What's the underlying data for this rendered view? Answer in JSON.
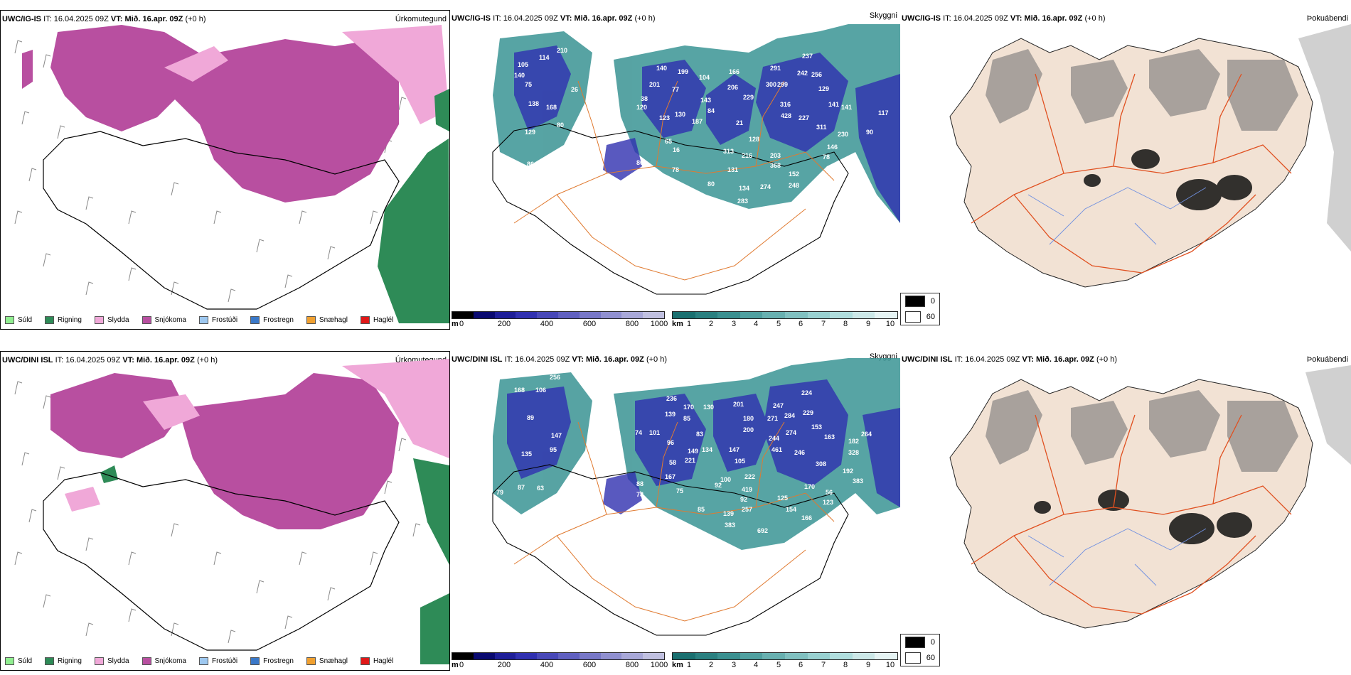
{
  "rows": [
    {
      "model": "UWC/IG-IS",
      "it_label": "IT:",
      "it_value": "16.04.2025 09Z",
      "vt_label": "VT:",
      "vt_value": "Mið. 16.apr. 09Z",
      "lead": "(+0 h)"
    },
    {
      "model": "UWC/DINI ISL",
      "it_label": "IT:",
      "it_value": "16.04.2025 09Z",
      "vt_label": "VT:",
      "vt_value": "Mið. 16.apr. 09Z",
      "lead": "(+0 h)"
    }
  ],
  "panel_labels": {
    "precip": "Úrkomutegund",
    "visibility": "Skyggni",
    "fog": "Þokuábendi"
  },
  "precip_legend": [
    {
      "label": "Súld",
      "color": "#90ee90"
    },
    {
      "label": "Rigning",
      "color": "#2e8b57"
    },
    {
      "label": "Slydda",
      "color": "#f0a8d8"
    },
    {
      "label": "Snjókoma",
      "color": "#b84fa0"
    },
    {
      "label": "Frostúði",
      "color": "#9ec8f0"
    },
    {
      "label": "Frostregn",
      "color": "#3a78c8"
    },
    {
      "label": "Snæhagl",
      "color": "#f0a030"
    },
    {
      "label": "Haglél",
      "color": "#e01818"
    }
  ],
  "cloudbase_bar": {
    "unit": "m",
    "ticks": [
      "0",
      "200",
      "400",
      "600",
      "800",
      "1000"
    ],
    "colors": [
      "#000000",
      "#0a0a70",
      "#1e1e98",
      "#3030b0",
      "#4848b8",
      "#6060c0",
      "#7878c8",
      "#9090d0",
      "#a8a8d8",
      "#c0c0e0"
    ]
  },
  "vis_bar": {
    "unit": "km",
    "ticks": [
      "1",
      "2",
      "3",
      "4",
      "5",
      "6",
      "7",
      "8",
      "9",
      "10"
    ],
    "colors": [
      "#1a7070",
      "#2a8080",
      "#3a9090",
      "#50a0a0",
      "#68b0b0",
      "#80c0c0",
      "#98d0d0",
      "#b0dede",
      "#cce8e8",
      "#e6f4f4"
    ]
  },
  "fog_legend": [
    {
      "label": "0",
      "color": "#000000"
    },
    {
      "label": "60",
      "color": "#ffffff"
    }
  ],
  "vis_numbers_top": [
    "105",
    "114",
    "210",
    "140",
    "75",
    "138",
    "168",
    "129",
    "80",
    "26",
    "71",
    "105",
    "86",
    "159",
    "80",
    "72",
    "115",
    "78",
    "16",
    "80",
    "140",
    "199",
    "201",
    "77",
    "38",
    "120",
    "143",
    "187",
    "130",
    "123",
    "65",
    "84",
    "104",
    "166",
    "206",
    "229",
    "21",
    "128",
    "313",
    "216",
    "131",
    "291",
    "300",
    "299",
    "237",
    "242",
    "256",
    "129",
    "316",
    "428",
    "227",
    "141",
    "141",
    "117",
    "311",
    "230",
    "90",
    "203",
    "368",
    "78",
    "146",
    "152",
    "248",
    "134",
    "274",
    "283",
    "344"
  ],
  "vis_numbers_bottom": [
    "256",
    "168",
    "106",
    "89",
    "147",
    "95",
    "135",
    "87",
    "79",
    "63",
    "84",
    "74",
    "88",
    "78",
    "75",
    "101",
    "96",
    "58",
    "149",
    "221",
    "134",
    "83",
    "167",
    "85",
    "92",
    "139",
    "257",
    "383",
    "692",
    "236",
    "170",
    "139",
    "85",
    "130",
    "201",
    "180",
    "200",
    "147",
    "105",
    "100",
    "222",
    "419",
    "92",
    "125",
    "154",
    "166",
    "247",
    "271",
    "284",
    "244",
    "461",
    "274",
    "229",
    "224",
    "153",
    "163",
    "182",
    "328",
    "264",
    "308",
    "246",
    "170",
    "56",
    "123",
    "192",
    "383"
  ]
}
